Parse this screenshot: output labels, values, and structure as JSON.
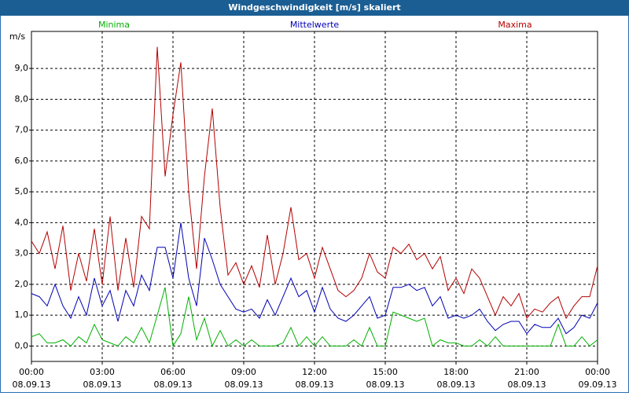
{
  "chart_data": {
    "type": "line",
    "title": "Windgeschwindigkeit [m/s] skaliert",
    "ylabel": "m/s",
    "x": [
      0,
      20,
      40,
      60,
      80,
      100,
      120,
      140,
      160,
      180,
      200,
      220,
      240,
      260,
      280,
      300,
      320,
      340,
      360,
      380,
      400,
      420,
      440,
      460,
      480,
      500,
      520,
      540,
      560,
      580,
      600,
      620,
      640,
      660,
      680,
      700,
      720,
      740,
      760,
      780,
      800,
      820,
      840,
      860,
      880,
      900,
      920,
      940,
      960,
      980,
      1000,
      1020,
      1040,
      1060,
      1080,
      1100,
      1120,
      1140,
      1160,
      1180,
      1200,
      1220,
      1240,
      1260,
      1280,
      1300,
      1320,
      1340,
      1360,
      1380,
      1400,
      1420,
      1440
    ],
    "series": [
      {
        "name": "Minima",
        "color": "#00b000",
        "values": [
          0.3,
          0.4,
          0.1,
          0.1,
          0.2,
          0.0,
          0.3,
          0.1,
          0.7,
          0.2,
          0.1,
          0.0,
          0.3,
          0.1,
          0.6,
          0.1,
          1.0,
          1.9,
          0.0,
          0.4,
          1.6,
          0.2,
          0.9,
          0.0,
          0.5,
          0.0,
          0.2,
          0.0,
          0.2,
          0.0,
          0.0,
          0.0,
          0.1,
          0.6,
          0.0,
          0.3,
          0.0,
          0.3,
          0.0,
          0.0,
          0.0,
          0.2,
          0.0,
          0.6,
          0.0,
          0.0,
          1.1,
          1.0,
          0.9,
          0.8,
          0.9,
          0.0,
          0.2,
          0.1,
          0.1,
          0.0,
          0.0,
          0.2,
          0.0,
          0.3,
          0.0,
          0.0,
          0.0,
          0.0,
          0.0,
          0.0,
          0.0,
          0.7,
          0.0,
          0.0,
          0.3,
          0.0,
          0.2
        ]
      },
      {
        "name": "Mittelwerte",
        "color": "#0000b4",
        "values": [
          1.7,
          1.6,
          1.3,
          2.0,
          1.3,
          0.9,
          1.6,
          1.0,
          2.2,
          1.3,
          1.8,
          0.8,
          1.8,
          1.3,
          2.3,
          1.8,
          3.2,
          3.2,
          2.2,
          4.0,
          2.2,
          1.3,
          3.5,
          2.8,
          2.0,
          1.6,
          1.2,
          1.1,
          1.2,
          0.9,
          1.5,
          1.0,
          1.6,
          2.2,
          1.6,
          1.8,
          1.1,
          1.9,
          1.2,
          0.9,
          0.8,
          1.0,
          1.3,
          1.6,
          0.9,
          1.0,
          1.9,
          1.9,
          2.0,
          1.8,
          1.9,
          1.3,
          1.6,
          0.9,
          1.0,
          0.9,
          1.0,
          1.2,
          0.8,
          0.5,
          0.7,
          0.8,
          0.8,
          0.4,
          0.7,
          0.6,
          0.6,
          0.9,
          0.4,
          0.6,
          1.0,
          0.9,
          1.4
        ]
      },
      {
        "name": "Maxima",
        "color": "#b40000",
        "values": [
          3.4,
          3.0,
          3.7,
          2.5,
          3.9,
          1.8,
          3.0,
          2.1,
          3.8,
          2.0,
          4.2,
          1.8,
          3.5,
          1.9,
          4.2,
          3.8,
          9.7,
          5.5,
          7.5,
          9.2,
          5.0,
          2.5,
          5.5,
          7.7,
          4.5,
          2.3,
          2.7,
          2.0,
          2.6,
          1.9,
          3.6,
          2.0,
          3.0,
          4.5,
          2.8,
          3.0,
          2.2,
          3.2,
          2.5,
          1.8,
          1.6,
          1.8,
          2.2,
          3.0,
          2.4,
          2.2,
          3.2,
          3.0,
          3.3,
          2.8,
          3.0,
          2.5,
          2.9,
          1.8,
          2.2,
          1.7,
          2.5,
          2.2,
          1.6,
          1.0,
          1.6,
          1.3,
          1.7,
          0.9,
          1.2,
          1.1,
          1.4,
          1.6,
          0.9,
          1.3,
          1.6,
          1.6,
          2.6
        ]
      }
    ],
    "xlim": [
      0,
      1440
    ],
    "xticks": [
      {
        "value": 0,
        "label": "00:00",
        "date": "08.09.13"
      },
      {
        "value": 180,
        "label": "03:00",
        "date": "08.09.13"
      },
      {
        "value": 360,
        "label": "06:00",
        "date": "08.09.13"
      },
      {
        "value": 540,
        "label": "09:00",
        "date": "08.09.13"
      },
      {
        "value": 720,
        "label": "12:00",
        "date": "08.09.13"
      },
      {
        "value": 900,
        "label": "15:00",
        "date": "08.09.13"
      },
      {
        "value": 1080,
        "label": "18:00",
        "date": "08.09.13"
      },
      {
        "value": 1260,
        "label": "21:00",
        "date": "08.09.13"
      },
      {
        "value": 1440,
        "label": "00:00",
        "date": "09.09.13"
      }
    ],
    "ylim": [
      -0.5,
      10.2
    ],
    "yticks": [
      {
        "value": 0,
        "label": "0,0"
      },
      {
        "value": 1,
        "label": "1,0"
      },
      {
        "value": 2,
        "label": "2,0"
      },
      {
        "value": 3,
        "label": "3,0"
      },
      {
        "value": 4,
        "label": "4,0"
      },
      {
        "value": 5,
        "label": "5,0"
      },
      {
        "value": 6,
        "label": "6,0"
      },
      {
        "value": 7,
        "label": "7,0"
      },
      {
        "value": 8,
        "label": "8,0"
      },
      {
        "value": 9,
        "label": "9,0"
      }
    ],
    "grid": true
  }
}
